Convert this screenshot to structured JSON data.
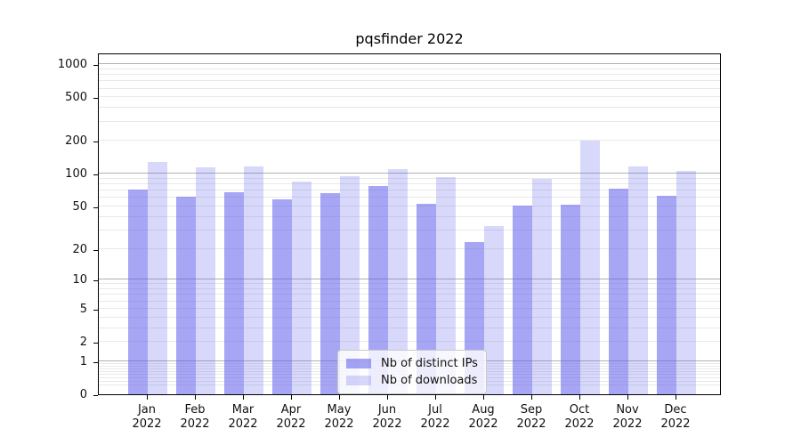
{
  "chart_data": {
    "type": "bar",
    "title": "pqsfinder 2022",
    "categories": [
      "Jan",
      "Feb",
      "Mar",
      "Apr",
      "May",
      "Jun",
      "Jul",
      "Aug",
      "Sep",
      "Oct",
      "Nov",
      "Dec"
    ],
    "category_line2": "2022",
    "series": [
      {
        "name": "Nb of distinct IPs",
        "color": "rgba(92,92,237,0.55)",
        "values": [
          72,
          62,
          68,
          58,
          66,
          78,
          53,
          23,
          51,
          52,
          73,
          63
        ]
      },
      {
        "name": "Nb of downloads",
        "color": "rgba(92,92,237,0.24)",
        "values": [
          128,
          114,
          117,
          85,
          96,
          110,
          94,
          33,
          90,
          203,
          116,
          107
        ]
      }
    ],
    "y_axis": {
      "scale": "log1p",
      "min": 0,
      "max": 1280,
      "ticks": [
        {
          "label": "0",
          "value": 0
        },
        {
          "label": "1",
          "value": 1
        },
        {
          "label": "2",
          "value": 2
        },
        {
          "label": "5",
          "value": 5
        },
        {
          "label": "10",
          "value": 10
        },
        {
          "label": "20",
          "value": 20
        },
        {
          "label": "50",
          "value": 50
        },
        {
          "label": "100",
          "value": 100
        },
        {
          "label": "200",
          "value": 200
        },
        {
          "label": "500",
          "value": 500
        },
        {
          "label": "1000",
          "value": 1000
        }
      ],
      "major_gridlines": [
        1,
        10,
        100,
        1000
      ],
      "minor_gridlines": [
        0.2,
        0.3,
        0.4,
        0.5,
        0.6,
        0.7,
        0.8,
        0.9,
        2,
        3,
        4,
        5,
        6,
        7,
        8,
        9,
        20,
        30,
        40,
        50,
        60,
        70,
        80,
        90,
        200,
        300,
        400,
        500,
        600,
        700,
        800,
        900
      ]
    },
    "legend": {
      "position": "lower-center"
    },
    "style": {
      "major_grid_color": "#b0b0b0",
      "minor_grid_color": "#e9e9e9",
      "spine_color": "#000000",
      "text_color": "#111111",
      "legend_bg": "rgba(255,255,255,0.8)",
      "legend_border": "#c9c9c9"
    }
  }
}
